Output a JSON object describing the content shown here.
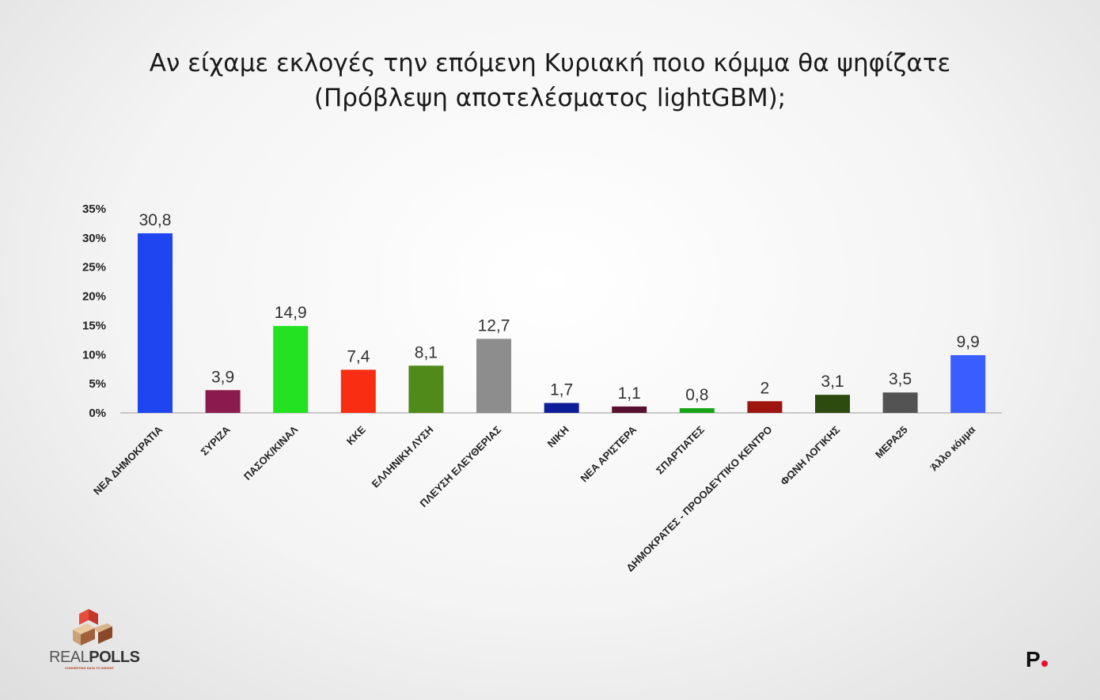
{
  "title_line1": "Αν είχαμε εκλογές την επόμενη Κυριακή ποιο κόμμα θα ψηφίζατε",
  "title_line2": "(Πρόβλεψη αποτελέσματος lightGBM);",
  "chart_data": {
    "type": "bar",
    "categories": [
      "ΝΕΑ ΔΗΜΟΚΡΑΤΙΑ",
      "ΣΥΡΙΖΑ",
      "ΠΑΣΟΚ/ΚΙΝΑΛ",
      "ΚΚΕ",
      "ΕΛΛΗΝΙΚΗ ΛΥΣΗ",
      "ΠΛΕΥΣΗ ΕΛΕΥΘΕΡΙΑΣ",
      "ΝΙΚΗ",
      "ΝΕΑ ΑΡΙΣΤΕΡΑ",
      "ΣΠΑΡΤΙΑΤΕΣ",
      "ΔΗΜΟΚΡΑΤΕΣ - ΠΡΟΟΔΕΥΤΙΚΟ ΚΕΝΤΡΟ",
      "ΦΩΝΗ ΛΟΓΙΚΗΣ",
      "ΜΕΡΑ25",
      "Άλλο κόμμα"
    ],
    "values": [
      30.8,
      3.9,
      14.9,
      7.4,
      8.1,
      12.7,
      1.7,
      1.1,
      0.8,
      2,
      3.1,
      3.5,
      9.9
    ],
    "value_labels": [
      "30,8",
      "3,9",
      "14,9",
      "7,4",
      "8,1",
      "12,7",
      "1,7",
      "1,1",
      "0,8",
      "2",
      "3,1",
      "3,5",
      "9,9"
    ],
    "colors": [
      "#1f45f0",
      "#8b1a4e",
      "#22e222",
      "#f82d12",
      "#4f8a1b",
      "#8d8d8d",
      "#0e1e9a",
      "#5a1131",
      "#16a316",
      "#9e140e",
      "#2d4b0f",
      "#535353",
      "#3a5dff"
    ],
    "ylim": [
      0,
      35
    ],
    "yticks": [
      "0%",
      "5%",
      "10%",
      "15%",
      "20%",
      "25%",
      "30%",
      "35%"
    ],
    "ytick_values": [
      0,
      5,
      10,
      15,
      20,
      25,
      30,
      35
    ],
    "grid": false
  },
  "logos": {
    "realpolls_a": "REAL",
    "realpolls_b": "POLLS",
    "realpolls_tagline": "CONVERTING DATA TO INSIGHT",
    "right_logo": "P"
  }
}
